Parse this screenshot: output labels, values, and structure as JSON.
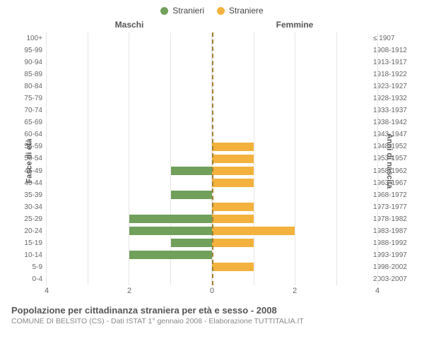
{
  "legend": {
    "male": {
      "label": "Stranieri",
      "color": "#71a05a"
    },
    "female": {
      "label": "Straniere",
      "color": "#f3b23e"
    }
  },
  "headers": {
    "left": "Maschi",
    "right": "Femmine"
  },
  "ylabels": {
    "left": "Fasce di età",
    "right": "Anni di nascita"
  },
  "axis": {
    "max": 4,
    "ticks_left": [
      4,
      2,
      0
    ],
    "ticks_right": [
      0,
      2,
      4
    ],
    "gridline_color": "#e6e6e6",
    "centerline_color": "#a08030"
  },
  "rows": [
    {
      "age": "100+",
      "birth": "≤ 1907",
      "m": 0,
      "f": 0
    },
    {
      "age": "95-99",
      "birth": "1908-1912",
      "m": 0,
      "f": 0
    },
    {
      "age": "90-94",
      "birth": "1913-1917",
      "m": 0,
      "f": 0
    },
    {
      "age": "85-89",
      "birth": "1918-1922",
      "m": 0,
      "f": 0
    },
    {
      "age": "80-84",
      "birth": "1923-1927",
      "m": 0,
      "f": 0
    },
    {
      "age": "75-79",
      "birth": "1928-1932",
      "m": 0,
      "f": 0
    },
    {
      "age": "70-74",
      "birth": "1933-1937",
      "m": 0,
      "f": 0
    },
    {
      "age": "65-69",
      "birth": "1938-1942",
      "m": 0,
      "f": 0
    },
    {
      "age": "60-64",
      "birth": "1943-1947",
      "m": 0,
      "f": 0
    },
    {
      "age": "55-59",
      "birth": "1948-1952",
      "m": 0,
      "f": 1
    },
    {
      "age": "50-54",
      "birth": "1953-1957",
      "m": 0,
      "f": 1
    },
    {
      "age": "45-49",
      "birth": "1958-1962",
      "m": 1,
      "f": 1
    },
    {
      "age": "40-44",
      "birth": "1963-1967",
      "m": 0,
      "f": 1
    },
    {
      "age": "35-39",
      "birth": "1968-1972",
      "m": 1,
      "f": 0
    },
    {
      "age": "30-34",
      "birth": "1973-1977",
      "m": 0,
      "f": 1
    },
    {
      "age": "25-29",
      "birth": "1978-1982",
      "m": 2,
      "f": 1
    },
    {
      "age": "20-24",
      "birth": "1983-1987",
      "m": 2,
      "f": 2
    },
    {
      "age": "15-19",
      "birth": "1988-1992",
      "m": 1,
      "f": 1
    },
    {
      "age": "10-14",
      "birth": "1993-1997",
      "m": 2,
      "f": 0
    },
    {
      "age": "5-9",
      "birth": "1998-2002",
      "m": 0,
      "f": 1
    },
    {
      "age": "0-4",
      "birth": "2003-2007",
      "m": 0,
      "f": 0
    }
  ],
  "title": "Popolazione per cittadinanza straniera per età e sesso - 2008",
  "subtitle": "COMUNE DI BELSITO (CS) - Dati ISTAT 1° gennaio 2008 - Elaborazione TUTTITALIA.IT",
  "colors": {
    "male_bar": "#71a05a",
    "female_bar": "#f3b23e",
    "background": "#ffffff"
  }
}
